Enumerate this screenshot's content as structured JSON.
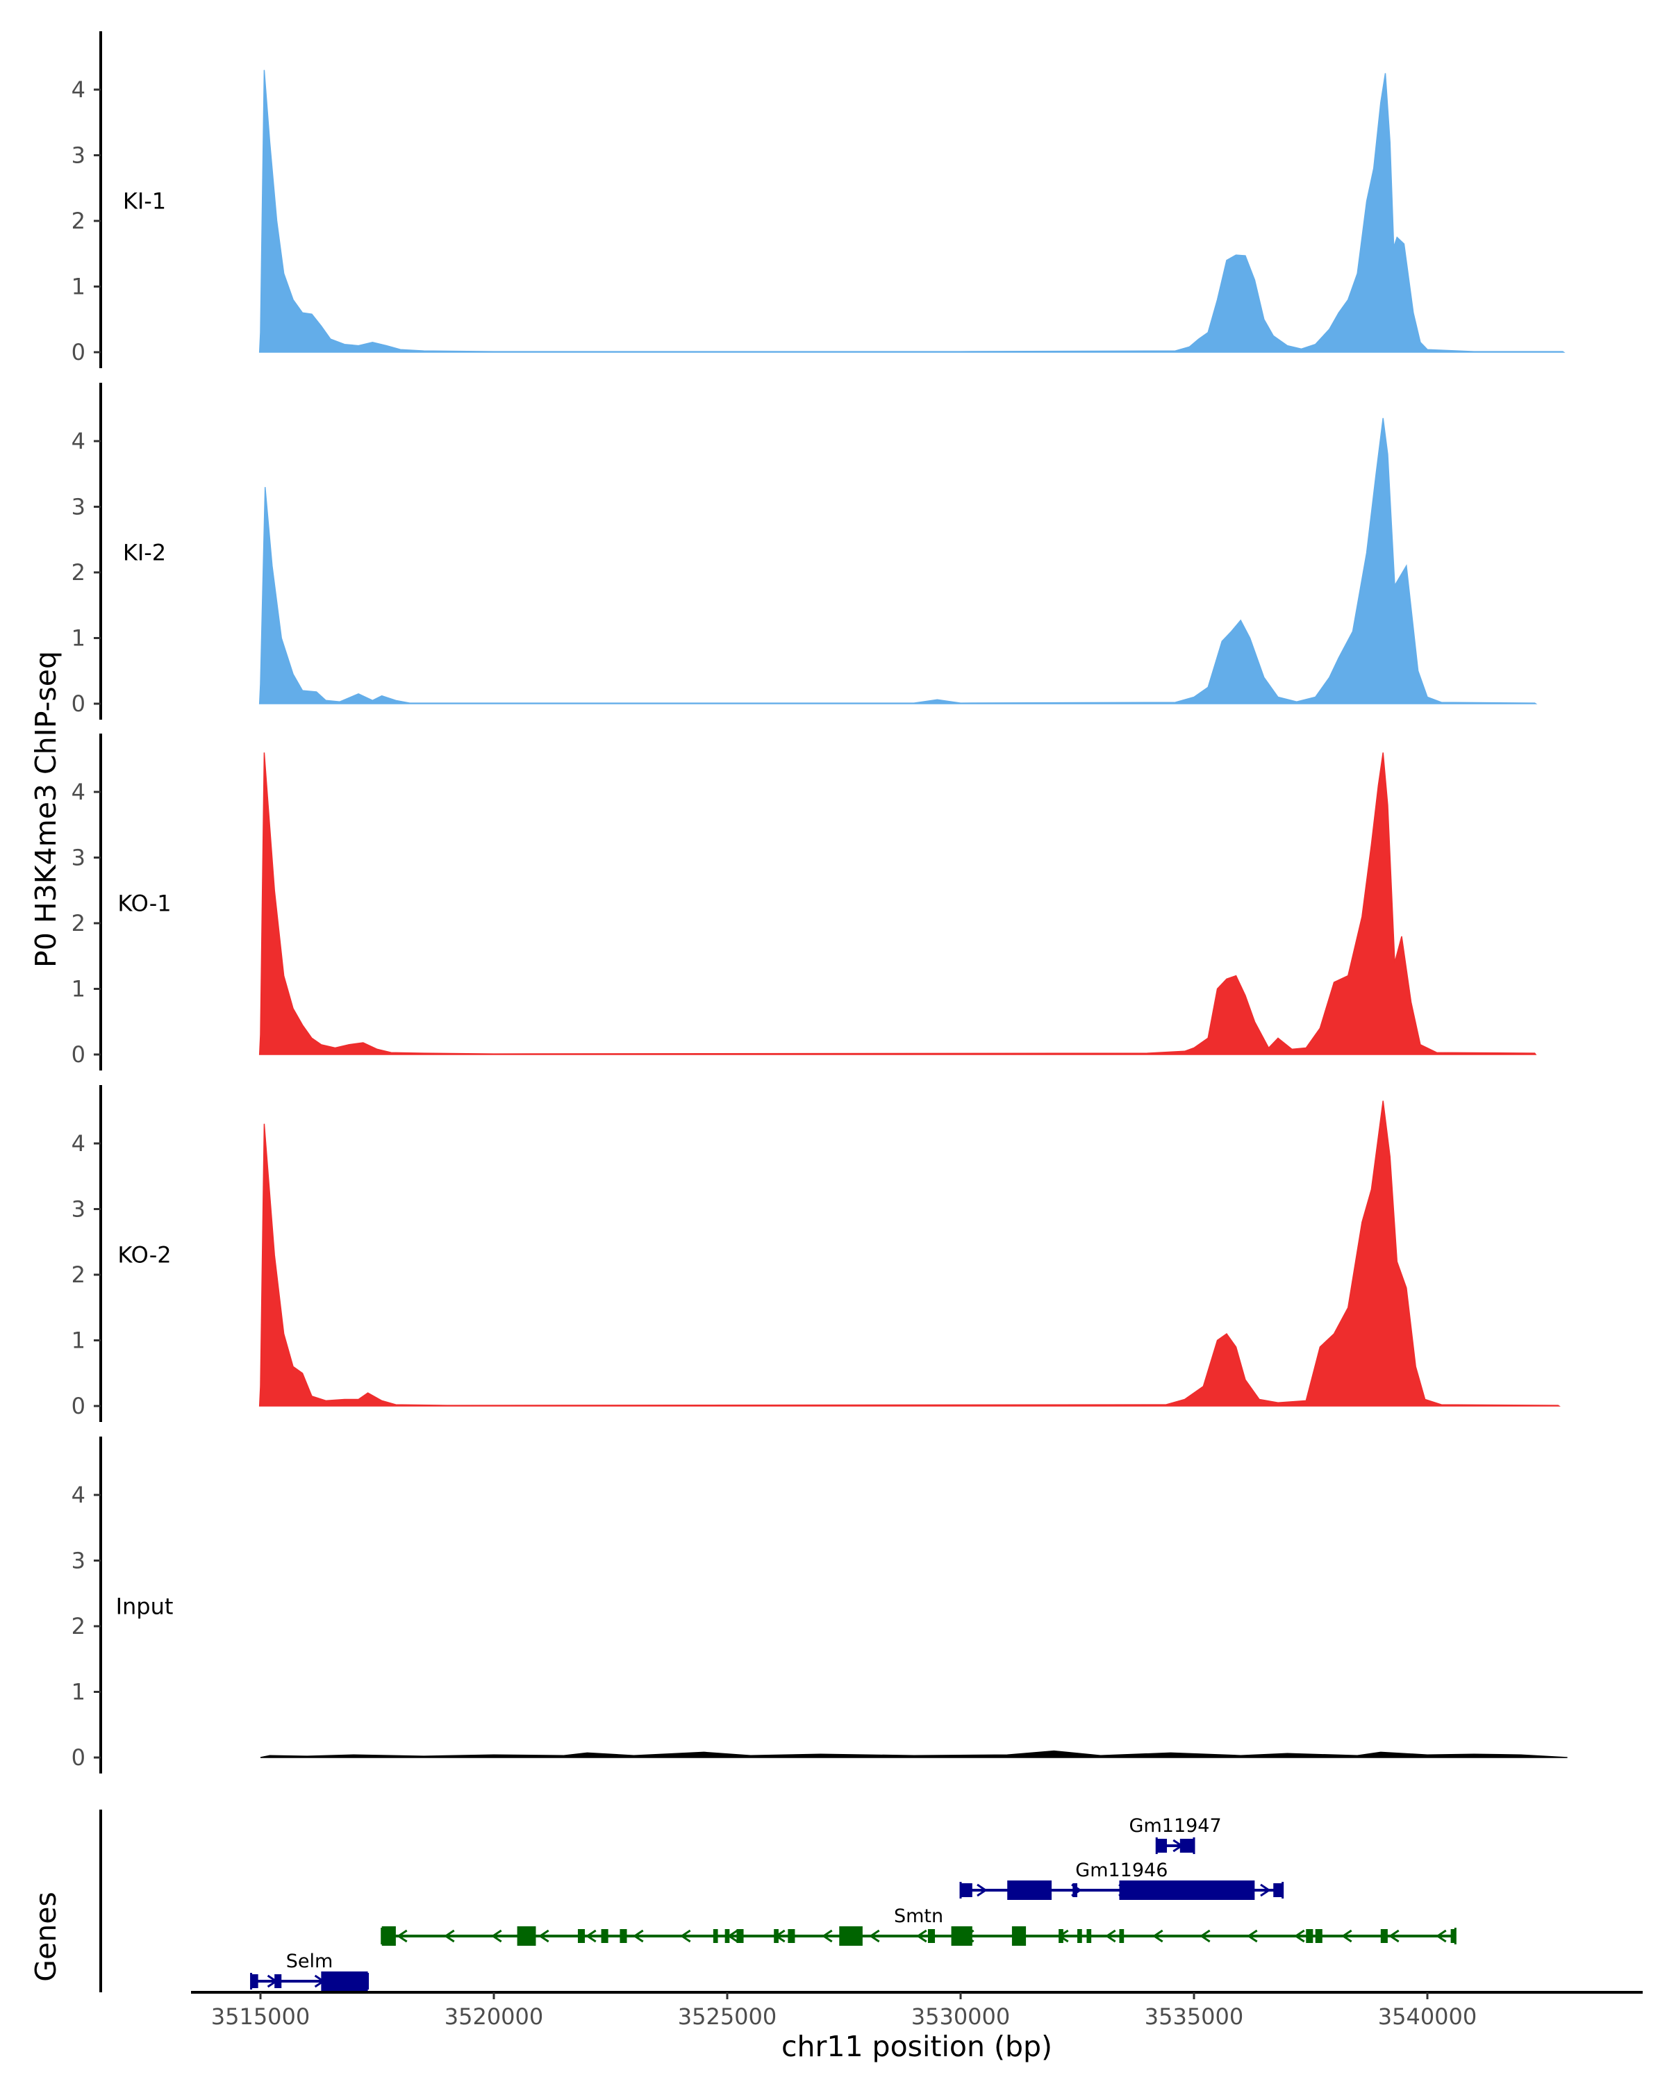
{
  "chart_data": {
    "type": "area",
    "ylabel": "P0 H3K4me3 ChIP-seq",
    "xlabel": "chr11 position (bp)",
    "xlim": [
      3513500,
      3543500
    ],
    "ylim": [
      -0.2,
      4.9
    ],
    "y_ticks": [
      0,
      1,
      2,
      3,
      4
    ],
    "y_tick_labels": [
      "0",
      "1",
      "2",
      "3",
      "4"
    ],
    "x_ticks": [
      3515000,
      3520000,
      3525000,
      3530000,
      3535000,
      3540000
    ],
    "x_tick_labels": [
      "3515000",
      "3520000",
      "3525000",
      "3530000",
      "3535000",
      "3540000"
    ],
    "grid": false,
    "colors": {
      "KI": "#63ADE9",
      "KO": "#EE2D2D",
      "Input": "#000000",
      "gene_plus": "#00008B",
      "gene_minus": "#006400"
    },
    "series": [
      {
        "name": "KI-1",
        "color": "#63ADE9",
        "x_start": 3515000,
        "x_end": 3542900,
        "points": [
          [
            3514980,
            0
          ],
          [
            3515000,
            0.3
          ],
          [
            3515080,
            4.3
          ],
          [
            3515200,
            3.2
          ],
          [
            3515350,
            2
          ],
          [
            3515500,
            1.2
          ],
          [
            3515700,
            0.8
          ],
          [
            3515900,
            0.6
          ],
          [
            3516100,
            0.58
          ],
          [
            3516300,
            0.4
          ],
          [
            3516500,
            0.2
          ],
          [
            3516800,
            0.12
          ],
          [
            3517100,
            0.1
          ],
          [
            3517400,
            0.15
          ],
          [
            3517700,
            0.1
          ],
          [
            3518000,
            0.04
          ],
          [
            3518500,
            0.02
          ],
          [
            3520000,
            0.01
          ],
          [
            3530000,
            0.01
          ],
          [
            3534600,
            0.02
          ],
          [
            3534900,
            0.08
          ],
          [
            3535100,
            0.2
          ],
          [
            3535300,
            0.3
          ],
          [
            3535500,
            0.8
          ],
          [
            3535700,
            1.4
          ],
          [
            3535900,
            1.48
          ],
          [
            3536100,
            1.47
          ],
          [
            3536300,
            1.1
          ],
          [
            3536500,
            0.5
          ],
          [
            3536700,
            0.25
          ],
          [
            3537000,
            0.1
          ],
          [
            3537300,
            0.05
          ],
          [
            3537600,
            0.12
          ],
          [
            3537900,
            0.35
          ],
          [
            3538100,
            0.6
          ],
          [
            3538300,
            0.8
          ],
          [
            3538500,
            1.2
          ],
          [
            3538700,
            2.3
          ],
          [
            3538850,
            2.8
          ],
          [
            3539000,
            3.8
          ],
          [
            3539100,
            4.25
          ],
          [
            3539200,
            3.2
          ],
          [
            3539280,
            1.6
          ],
          [
            3539350,
            1.75
          ],
          [
            3539500,
            1.65
          ],
          [
            3539700,
            0.6
          ],
          [
            3539850,
            0.15
          ],
          [
            3540000,
            0.04
          ],
          [
            3541000,
            0.01
          ],
          [
            3542900,
            0.01
          ],
          [
            3542920,
            0
          ]
        ]
      },
      {
        "name": "KI-2",
        "color": "#63ADE9",
        "x_start": 3515000,
        "x_end": 3542300,
        "points": [
          [
            3514980,
            0
          ],
          [
            3515000,
            0.3
          ],
          [
            3515100,
            3.3
          ],
          [
            3515250,
            2.1
          ],
          [
            3515450,
            1
          ],
          [
            3515700,
            0.45
          ],
          [
            3515900,
            0.2
          ],
          [
            3516200,
            0.18
          ],
          [
            3516400,
            0.05
          ],
          [
            3516700,
            0.03
          ],
          [
            3517100,
            0.15
          ],
          [
            3517400,
            0.05
          ],
          [
            3517600,
            0.12
          ],
          [
            3517900,
            0.05
          ],
          [
            3518200,
            0.01
          ],
          [
            3529000,
            0.01
          ],
          [
            3529500,
            0.06
          ],
          [
            3530000,
            0.01
          ],
          [
            3534600,
            0.02
          ],
          [
            3535000,
            0.1
          ],
          [
            3535300,
            0.25
          ],
          [
            3535600,
            0.95
          ],
          [
            3535800,
            1.1
          ],
          [
            3536000,
            1.27
          ],
          [
            3536200,
            1
          ],
          [
            3536500,
            0.4
          ],
          [
            3536800,
            0.1
          ],
          [
            3537200,
            0.03
          ],
          [
            3537600,
            0.1
          ],
          [
            3537900,
            0.4
          ],
          [
            3538100,
            0.7
          ],
          [
            3538400,
            1.1
          ],
          [
            3538700,
            2.3
          ],
          [
            3538900,
            3.5
          ],
          [
            3539050,
            4.35
          ],
          [
            3539150,
            3.8
          ],
          [
            3539300,
            1.8
          ],
          [
            3539550,
            2.1
          ],
          [
            3539800,
            0.5
          ],
          [
            3540000,
            0.1
          ],
          [
            3540300,
            0.02
          ],
          [
            3542300,
            0.01
          ],
          [
            3542320,
            0
          ]
        ]
      },
      {
        "name": "KO-1",
        "color": "#EE2D2D",
        "x_start": 3515000,
        "x_end": 3542300,
        "points": [
          [
            3514980,
            0
          ],
          [
            3515000,
            0.3
          ],
          [
            3515080,
            4.6
          ],
          [
            3515300,
            2.5
          ],
          [
            3515500,
            1.2
          ],
          [
            3515700,
            0.7
          ],
          [
            3515900,
            0.45
          ],
          [
            3516100,
            0.25
          ],
          [
            3516300,
            0.15
          ],
          [
            3516600,
            0.1
          ],
          [
            3516900,
            0.15
          ],
          [
            3517200,
            0.18
          ],
          [
            3517500,
            0.08
          ],
          [
            3517800,
            0.03
          ],
          [
            3518500,
            0.02
          ],
          [
            3520000,
            0.01
          ],
          [
            3534000,
            0.02
          ],
          [
            3534800,
            0.05
          ],
          [
            3535000,
            0.1
          ],
          [
            3535300,
            0.25
          ],
          [
            3535500,
            1
          ],
          [
            3535700,
            1.15
          ],
          [
            3535900,
            1.2
          ],
          [
            3536100,
            0.9
          ],
          [
            3536300,
            0.5
          ],
          [
            3536600,
            0.1
          ],
          [
            3536800,
            0.25
          ],
          [
            3537100,
            0.08
          ],
          [
            3537400,
            0.1
          ],
          [
            3537700,
            0.4
          ],
          [
            3538000,
            1.1
          ],
          [
            3538300,
            1.2
          ],
          [
            3538600,
            2.1
          ],
          [
            3538800,
            3.2
          ],
          [
            3538950,
            4.1
          ],
          [
            3539050,
            4.6
          ],
          [
            3539150,
            3.8
          ],
          [
            3539300,
            1.4
          ],
          [
            3539450,
            1.8
          ],
          [
            3539650,
            0.8
          ],
          [
            3539850,
            0.15
          ],
          [
            3540200,
            0.03
          ],
          [
            3542300,
            0.02
          ],
          [
            3542320,
            0
          ]
        ]
      },
      {
        "name": "KO-2",
        "color": "#EE2D2D",
        "x_start": 3515000,
        "x_end": 3542800,
        "points": [
          [
            3514980,
            0
          ],
          [
            3515000,
            0.3
          ],
          [
            3515080,
            4.3
          ],
          [
            3515300,
            2.3
          ],
          [
            3515500,
            1.1
          ],
          [
            3515700,
            0.6
          ],
          [
            3515900,
            0.5
          ],
          [
            3516100,
            0.15
          ],
          [
            3516400,
            0.08
          ],
          [
            3516800,
            0.1
          ],
          [
            3517100,
            0.1
          ],
          [
            3517300,
            0.2
          ],
          [
            3517600,
            0.08
          ],
          [
            3517900,
            0.02
          ],
          [
            3519000,
            0.01
          ],
          [
            3534400,
            0.02
          ],
          [
            3534800,
            0.1
          ],
          [
            3535200,
            0.3
          ],
          [
            3535500,
            1
          ],
          [
            3535700,
            1.1
          ],
          [
            3535900,
            0.9
          ],
          [
            3536100,
            0.4
          ],
          [
            3536400,
            0.1
          ],
          [
            3536800,
            0.05
          ],
          [
            3537400,
            0.08
          ],
          [
            3537700,
            0.9
          ],
          [
            3538000,
            1.1
          ],
          [
            3538300,
            1.5
          ],
          [
            3538600,
            2.8
          ],
          [
            3538800,
            3.3
          ],
          [
            3538950,
            4.1
          ],
          [
            3539050,
            4.65
          ],
          [
            3539200,
            3.8
          ],
          [
            3539350,
            2.2
          ],
          [
            3539550,
            1.8
          ],
          [
            3539750,
            0.6
          ],
          [
            3539950,
            0.1
          ],
          [
            3540300,
            0.02
          ],
          [
            3542800,
            0.01
          ],
          [
            3542820,
            0
          ]
        ]
      },
      {
        "name": "Input",
        "color": "#000000",
        "x_start": 3515000,
        "x_end": 3543000,
        "points": [
          [
            3515000,
            0
          ],
          [
            3515200,
            0.03
          ],
          [
            3516000,
            0.02
          ],
          [
            3517000,
            0.04
          ],
          [
            3518500,
            0.02
          ],
          [
            3520000,
            0.04
          ],
          [
            3521500,
            0.03
          ],
          [
            3522000,
            0.07
          ],
          [
            3523000,
            0.03
          ],
          [
            3524500,
            0.08
          ],
          [
            3525500,
            0.03
          ],
          [
            3527000,
            0.05
          ],
          [
            3529000,
            0.03
          ],
          [
            3531000,
            0.04
          ],
          [
            3532000,
            0.1
          ],
          [
            3533000,
            0.03
          ],
          [
            3534500,
            0.07
          ],
          [
            3536000,
            0.03
          ],
          [
            3537000,
            0.06
          ],
          [
            3538500,
            0.03
          ],
          [
            3539000,
            0.08
          ],
          [
            3540000,
            0.04
          ],
          [
            3541000,
            0.05
          ],
          [
            3542000,
            0.04
          ],
          [
            3543000,
            0
          ]
        ]
      }
    ],
    "genes": [
      {
        "name": "Gm11947",
        "strand": "+",
        "row": 4,
        "start": 3534200,
        "end": 3535000,
        "exons": [
          [
            3534200,
            3534420
          ],
          [
            3534700,
            3535000
          ]
        ],
        "thick": []
      },
      {
        "name": "Gm11946",
        "strand": "+",
        "row": 3,
        "start": 3530000,
        "end": 3536900,
        "exons": [
          [
            3530000,
            3530250
          ],
          [
            3531000,
            3531950
          ],
          [
            3532400,
            3532500
          ],
          [
            3533400,
            3536300
          ],
          [
            3536700,
            3536900
          ]
        ],
        "thick": [
          [
            3531000,
            3531950
          ],
          [
            3533400,
            3536300
          ]
        ]
      },
      {
        "name": "Smtn",
        "strand": "-",
        "row": 2,
        "start": 3517600,
        "end": 3540600,
        "exons": [
          [
            3517600,
            3517900
          ],
          [
            3520500,
            3520900
          ],
          [
            3521800,
            3521950
          ],
          [
            3522300,
            3522450
          ],
          [
            3522700,
            3522850
          ],
          [
            3524700,
            3524800
          ],
          [
            3524950,
            3525050
          ],
          [
            3525200,
            3525350
          ],
          [
            3526000,
            3526100
          ],
          [
            3526300,
            3526450
          ],
          [
            3527400,
            3527900
          ],
          [
            3529300,
            3529450
          ],
          [
            3529800,
            3530250
          ],
          [
            3531100,
            3531400
          ],
          [
            3532100,
            3532200
          ],
          [
            3532500,
            3532600
          ],
          [
            3532700,
            3532800
          ],
          [
            3533400,
            3533500
          ],
          [
            3537400,
            3537550
          ],
          [
            3537600,
            3537750
          ],
          [
            3539000,
            3539150
          ],
          [
            3540500,
            3540600
          ]
        ],
        "thick": [
          [
            3517600,
            3517900
          ],
          [
            3520500,
            3520900
          ],
          [
            3527400,
            3527900
          ],
          [
            3529800,
            3530250
          ],
          [
            3531100,
            3531400
          ]
        ]
      },
      {
        "name": "Selm",
        "strand": "+",
        "row": 1,
        "start": 3514800,
        "end": 3517300,
        "exons": [
          [
            3514800,
            3514950
          ],
          [
            3515300,
            3515450
          ],
          [
            3516300,
            3517300
          ]
        ],
        "thick": [
          [
            3516300,
            3517300
          ]
        ]
      }
    ],
    "genes_label": "Genes"
  }
}
